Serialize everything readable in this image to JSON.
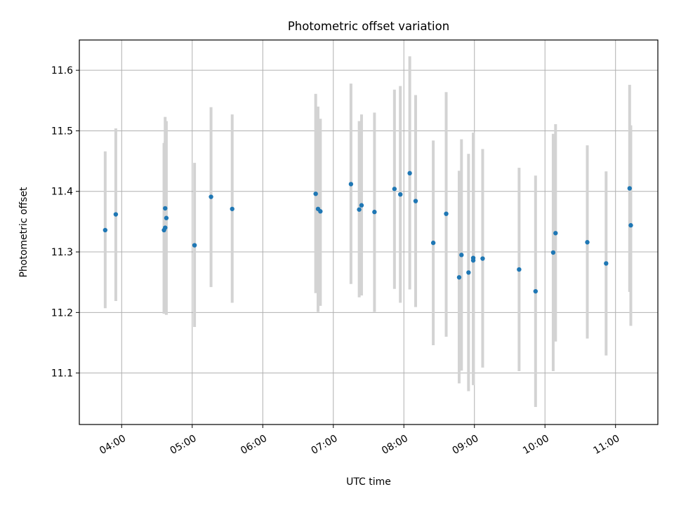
{
  "chart_data": {
    "type": "scatter",
    "title": "Photometric offset variation",
    "xlabel": "UTC time",
    "ylabel": "Photometric offset",
    "grid": true,
    "xlim": [
      "03:24",
      "11:36"
    ],
    "ylim": [
      11.015,
      11.65
    ],
    "x_ticks": [
      "04:00",
      "05:00",
      "06:00",
      "07:00",
      "08:00",
      "09:00",
      "10:00",
      "11:00"
    ],
    "y_ticks": [
      11.1,
      11.2,
      11.3,
      11.4,
      11.5,
      11.6
    ],
    "point_color": "#1f77b4",
    "errorbar_color": "#d3d3d3",
    "points": [
      {
        "x": "03:46",
        "y": 11.336,
        "ylow": 11.207,
        "yhigh": 11.466
      },
      {
        "x": "03:55",
        "y": 11.362,
        "ylow": 11.219,
        "yhigh": 11.504
      },
      {
        "x": "04:36",
        "y": 11.336,
        "ylow": 11.198,
        "yhigh": 11.48
      },
      {
        "x": "04:37",
        "y": 11.34,
        "ylow": 11.2,
        "yhigh": 11.483
      },
      {
        "x": "04:37",
        "y": 11.372,
        "ylow": 11.198,
        "yhigh": 11.523
      },
      {
        "x": "04:38",
        "y": 11.356,
        "ylow": 11.196,
        "yhigh": 11.516
      },
      {
        "x": "05:02",
        "y": 11.311,
        "ylow": 11.176,
        "yhigh": 11.447
      },
      {
        "x": "05:16",
        "y": 11.391,
        "ylow": 11.242,
        "yhigh": 11.539
      },
      {
        "x": "05:34",
        "y": 11.371,
        "ylow": 11.216,
        "yhigh": 11.527
      },
      {
        "x": "06:45",
        "y": 11.396,
        "ylow": 11.232,
        "yhigh": 11.561
      },
      {
        "x": "06:47",
        "y": 11.371,
        "ylow": 11.201,
        "yhigh": 11.54
      },
      {
        "x": "06:49",
        "y": 11.367,
        "ylow": 11.211,
        "yhigh": 11.52
      },
      {
        "x": "07:15",
        "y": 11.412,
        "ylow": 11.247,
        "yhigh": 11.578
      },
      {
        "x": "07:22",
        "y": 11.37,
        "ylow": 11.225,
        "yhigh": 11.516
      },
      {
        "x": "07:24",
        "y": 11.377,
        "ylow": 11.228,
        "yhigh": 11.527
      },
      {
        "x": "07:35",
        "y": 11.366,
        "ylow": 11.201,
        "yhigh": 11.53
      },
      {
        "x": "07:52",
        "y": 11.404,
        "ylow": 11.239,
        "yhigh": 11.568
      },
      {
        "x": "07:57",
        "y": 11.395,
        "ylow": 11.216,
        "yhigh": 11.574
      },
      {
        "x": "08:05",
        "y": 11.43,
        "ylow": 11.238,
        "yhigh": 11.623
      },
      {
        "x": "08:10",
        "y": 11.384,
        "ylow": 11.209,
        "yhigh": 11.559
      },
      {
        "x": "08:25",
        "y": 11.315,
        "ylow": 11.146,
        "yhigh": 11.484
      },
      {
        "x": "08:36",
        "y": 11.363,
        "ylow": 11.16,
        "yhigh": 11.564
      },
      {
        "x": "08:47",
        "y": 11.258,
        "ylow": 11.083,
        "yhigh": 11.434
      },
      {
        "x": "08:49",
        "y": 11.295,
        "ylow": 11.104,
        "yhigh": 11.486
      },
      {
        "x": "08:55",
        "y": 11.266,
        "ylow": 11.07,
        "yhigh": 11.462
      },
      {
        "x": "08:59",
        "y": 11.286,
        "ylow": 11.08,
        "yhigh": 11.493
      },
      {
        "x": "08:59",
        "y": 11.29,
        "ylow": 11.082,
        "yhigh": 11.497
      },
      {
        "x": "09:07",
        "y": 11.289,
        "ylow": 11.109,
        "yhigh": 11.47
      },
      {
        "x": "09:38",
        "y": 11.271,
        "ylow": 11.103,
        "yhigh": 11.439
      },
      {
        "x": "09:52",
        "y": 11.235,
        "ylow": 11.044,
        "yhigh": 11.426
      },
      {
        "x": "10:07",
        "y": 11.299,
        "ylow": 11.103,
        "yhigh": 11.495
      },
      {
        "x": "10:09",
        "y": 11.331,
        "ylow": 11.152,
        "yhigh": 11.511
      },
      {
        "x": "10:36",
        "y": 11.316,
        "ylow": 11.157,
        "yhigh": 11.476
      },
      {
        "x": "10:52",
        "y": 11.281,
        "ylow": 11.129,
        "yhigh": 11.433
      },
      {
        "x": "11:12",
        "y": 11.405,
        "ylow": 11.234,
        "yhigh": 11.576
      },
      {
        "x": "11:13",
        "y": 11.344,
        "ylow": 11.178,
        "yhigh": 11.509
      }
    ]
  }
}
